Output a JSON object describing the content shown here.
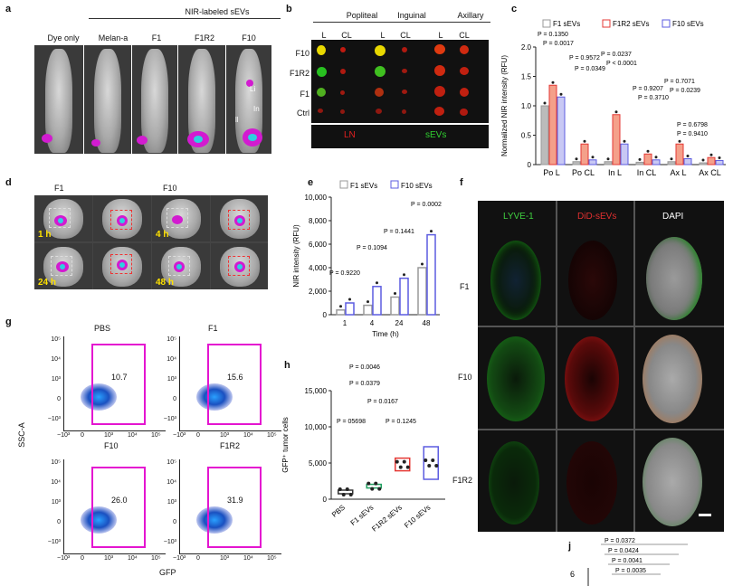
{
  "panels": {
    "a": "a",
    "b": "b",
    "c": "c",
    "d": "d",
    "e": "e",
    "f": "f",
    "g": "g",
    "h": "h",
    "j": "j"
  },
  "panel_a": {
    "group_header": "NIR-labeled sEVs",
    "labels": [
      "Dye only",
      "Melan-a",
      "F1",
      "F1R2",
      "F10"
    ],
    "organs": [
      "Li",
      "In",
      "ll"
    ]
  },
  "panel_b": {
    "headers": [
      "Popliteal",
      "Inguinal",
      "Axillary"
    ],
    "cols": [
      "L",
      "CL",
      "L",
      "CL",
      "L",
      "CL"
    ],
    "rows": [
      "F10",
      "F1R2",
      "F1",
      "Ctrl"
    ],
    "legend_ln": "LN",
    "legend_sevs": "sEVs"
  },
  "panel_c": {
    "legend": [
      "F1 sEVs",
      "F1R2 sEVs",
      "F10 sEVs"
    ],
    "ylabel": "Normalized NIR intensity (RFU)",
    "yticks": [
      "0",
      "0.5",
      "1.0",
      "1.5",
      "2.0"
    ],
    "categories": [
      "Po L",
      "Po CL",
      "In L",
      "In CL",
      "Ax L",
      "Ax CL"
    ],
    "pvals": [
      "P = 0.1350",
      "P = 0.0017",
      "P = 0.9572",
      "P = 0.0349",
      "P = 0.0237",
      "P < 0.0001",
      "P = 0.9207",
      "P = 0.3710",
      "P = 0.7071",
      "P = 0.0239",
      "P = 0.6798",
      "P = 0.9410"
    ]
  },
  "panel_d": {
    "cols": [
      "F1",
      "F10"
    ],
    "times": [
      "1 h",
      "4 h",
      "24 h",
      "48 h"
    ]
  },
  "panel_e": {
    "legend": [
      "F1 sEVs",
      "F10 sEVs"
    ],
    "ylabel": "NIR intensity (RFU)",
    "xlabel": "Time (h)",
    "xticks": [
      "1",
      "4",
      "24",
      "48"
    ],
    "yticks": [
      "0",
      "2,000",
      "4,000",
      "6,000",
      "8,000",
      "10,000"
    ],
    "pvals": [
      "P = 0.9220",
      "P = 0.1094",
      "P = 0.1441",
      "P = 0.0002"
    ]
  },
  "panel_f": {
    "headers": [
      "LYVE-1",
      "DiD-sEVs",
      "DAPI"
    ],
    "rows": [
      "F1",
      "F10",
      "F1R2"
    ]
  },
  "panel_g": {
    "col_titles": [
      "PBS",
      "F1"
    ],
    "plots": [
      {
        "x": "F10",
        "value": "10.7"
      },
      {
        "x": "F1R2",
        "value": "15.6"
      },
      {
        "x": "",
        "value": "26.0"
      },
      {
        "x": "",
        "value": "31.9"
      }
    ],
    "ylabel": "SSC-A",
    "xlabel": "GFP",
    "yticks": [
      "10⁵",
      "10⁴",
      "10³",
      "0",
      "−10³"
    ],
    "xticks": [
      "−10³",
      "0",
      "10³",
      "10⁴",
      "10⁵"
    ]
  },
  "panel_h": {
    "ylabel": "GFP⁺ tumor cells",
    "yticks": [
      "0",
      "5,000",
      "10,000",
      "15,000"
    ],
    "categories": [
      "PBS",
      "F1 sEVs",
      "F1R2 sEVs",
      "F10 sEVs"
    ],
    "pvals": [
      "P = 0.0046",
      "P = 0.0379",
      "P = 0.0167",
      "P = 05698",
      "P = 0.1245"
    ]
  },
  "panel_j": {
    "ytick": "6",
    "pvals": [
      "P = 0.0372",
      "P = 0.0424",
      "P = 0.0041",
      "P = 0.0035"
    ]
  },
  "chart_data": [
    {
      "type": "bar",
      "title": "",
      "ylabel": "Normalized NIR intensity (RFU)",
      "ylim": [
        0,
        2.0
      ],
      "categories": [
        "Po L",
        "Po CL",
        "In L",
        "In CL",
        "Ax L",
        "Ax CL"
      ],
      "series": [
        {
          "name": "F1 sEVs",
          "values": [
            1.0,
            0.05,
            0.05,
            0.04,
            0.05,
            0.03
          ]
        },
        {
          "name": "F1R2 sEVs",
          "values": [
            1.35,
            0.35,
            0.85,
            0.18,
            0.35,
            0.12
          ]
        },
        {
          "name": "F10 sEVs",
          "values": [
            1.15,
            0.08,
            0.35,
            0.08,
            0.1,
            0.07
          ]
        }
      ]
    },
    {
      "type": "bar",
      "ylabel": "NIR intensity (RFU)",
      "xlabel": "Time (h)",
      "ylim": [
        0,
        10000
      ],
      "categories": [
        "1",
        "4",
        "24",
        "48"
      ],
      "series": [
        {
          "name": "F1 sEVs",
          "values": [
            400,
            800,
            1500,
            4000
          ]
        },
        {
          "name": "F10 sEVs",
          "values": [
            1000,
            2400,
            3100,
            6800
          ]
        }
      ]
    },
    {
      "type": "scatter",
      "ylabel": "GFP⁺ tumor cells",
      "ylim": [
        0,
        15000
      ],
      "categories": [
        "PBS",
        "F1 sEVs",
        "F1R2 sEVs",
        "F10 sEVs"
      ],
      "series": [
        {
          "name": "median",
          "values": [
            1000,
            1800,
            4800,
            5000
          ]
        }
      ]
    }
  ]
}
